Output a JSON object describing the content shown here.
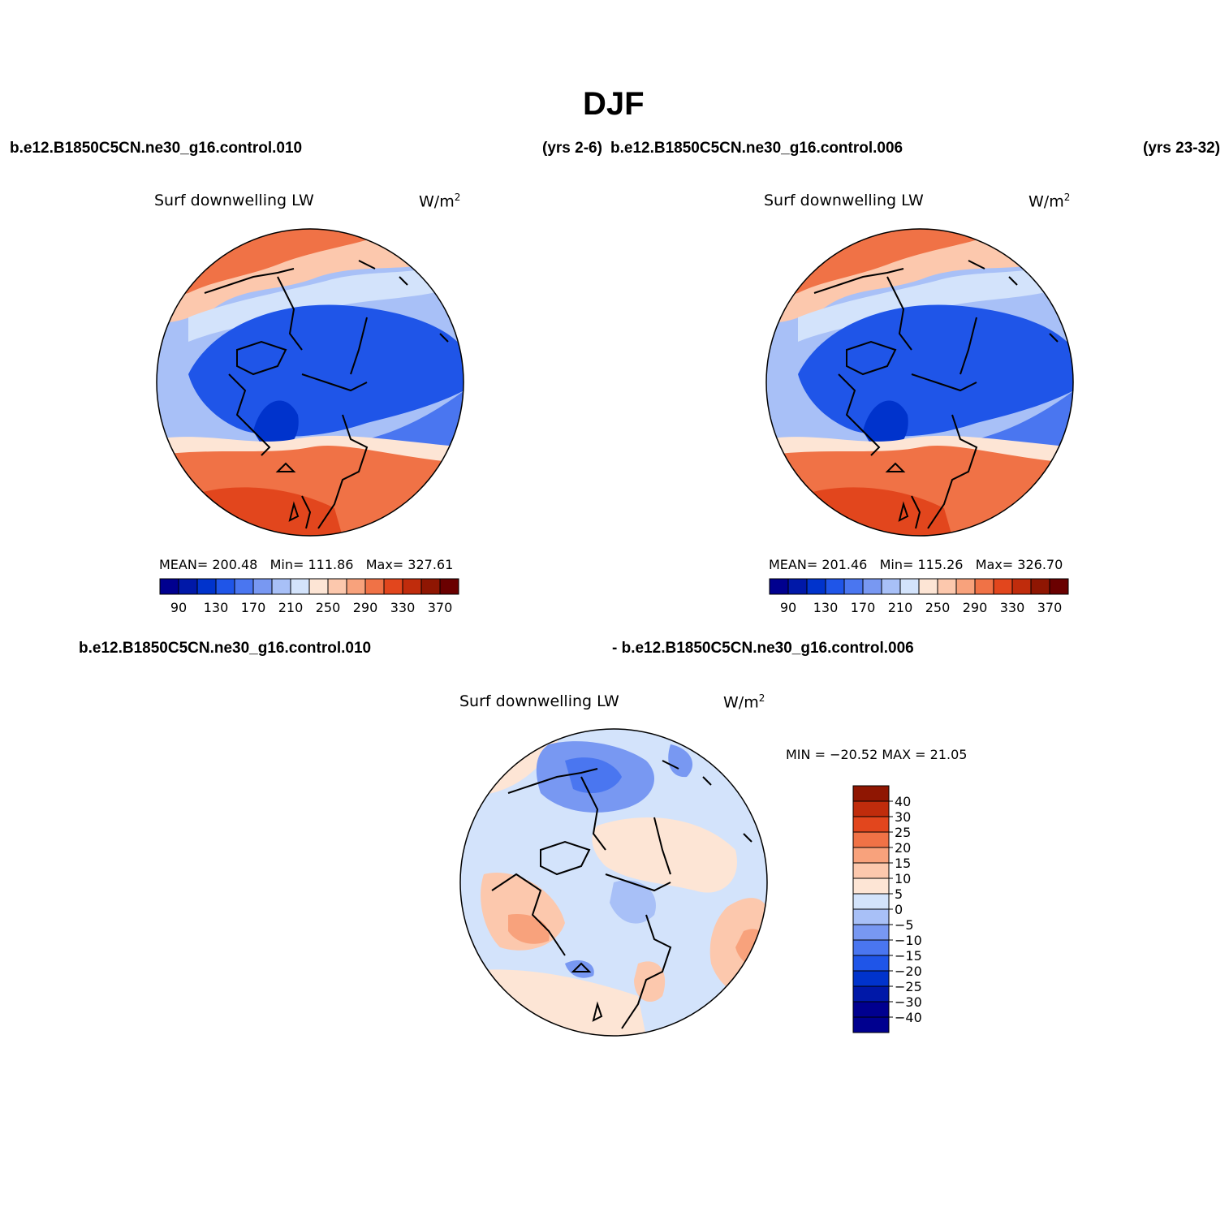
{
  "header": {
    "title": "DJF"
  },
  "top_left": {
    "case": "b.e12.B1850C5CN.ne30_g16.control.010",
    "years": "(yrs 2-6)",
    "label": "Surf downwelling LW",
    "units": "W/m",
    "units_exp": "2",
    "stats": {
      "mean_label": "MEAN=",
      "mean": "200.48",
      "min_label": "Min=",
      "min": "111.86",
      "max_label": "Max=",
      "max": "327.61"
    }
  },
  "top_right": {
    "case": "b.e12.B1850C5CN.ne30_g16.control.006",
    "years": "(yrs 23-32)",
    "label": "Surf downwelling LW",
    "units": "W/m",
    "units_exp": "2",
    "stats": {
      "mean_label": "MEAN=",
      "mean": "201.46",
      "min_label": "Min=",
      "min": "115.26",
      "max_label": "Max=",
      "max": "326.70"
    }
  },
  "diff": {
    "case_a": "b.e12.B1850C5CN.ne30_g16.control.010",
    "case_b": "- b.e12.B1850C5CN.ne30_g16.control.006",
    "label": "Surf downwelling LW",
    "units": "W/m",
    "units_exp": "2",
    "minmax": "MIN = −20.52 MAX =  21.05"
  },
  "colorbars": {
    "abs_colors": [
      "#00008f",
      "#0018a8",
      "#0033cc",
      "#1f55e8",
      "#4a76f0",
      "#7898f2",
      "#a8c0f7",
      "#d3e3fb",
      "#fde5d5",
      "#fcc8ad",
      "#f8a27c",
      "#f07246",
      "#e2461d",
      "#c02c0c",
      "#8f1602",
      "#6a0000"
    ],
    "abs_ticks": [
      "90",
      "130",
      "170",
      "210",
      "250",
      "290",
      "330",
      "370"
    ],
    "diff_colors": [
      "#00008f",
      "#0018a8",
      "#0033cc",
      "#1f55e8",
      "#4a76f0",
      "#7898f2",
      "#a8c0f7",
      "#d3e3fb",
      "#fde5d5",
      "#fcc8ad",
      "#f8a27c",
      "#f07246",
      "#e2461d",
      "#c02c0c",
      "#8f1602"
    ],
    "diff_ticks": [
      "40",
      "30",
      "25",
      "20",
      "15",
      "10",
      "5",
      "0",
      "−5",
      "−10",
      "−15",
      "−20",
      "−25",
      "−30",
      "−40"
    ]
  },
  "colors": {
    "deep_blue": "#1f55e8",
    "mid_blue": "#4a76f0",
    "light_blue": "#a8c0f7",
    "pale_blue": "#d3e3fb",
    "pale_red": "#fde5d5",
    "orange": "#f07246",
    "red_orange": "#e2461d"
  }
}
